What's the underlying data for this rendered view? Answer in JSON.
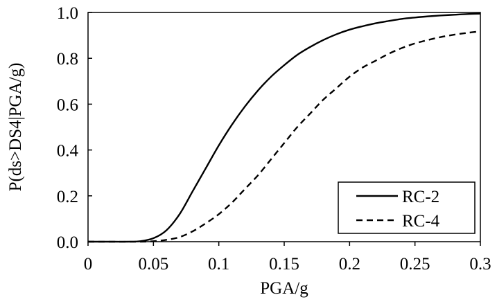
{
  "chart_data": {
    "type": "line",
    "xlabel": "PGA/g",
    "ylabel": "P(ds>DS4|PGA/g)",
    "xlim": [
      0,
      0.3
    ],
    "ylim": [
      0,
      1.0
    ],
    "x_ticks": [
      "0",
      "0.05",
      "0.1",
      "0.15",
      "0.2",
      "0.25",
      "0.3"
    ],
    "y_ticks": [
      "0.0",
      "0.2",
      "0.4",
      "0.6",
      "0.8",
      "1.0"
    ],
    "grid": false,
    "legend_position": "bottom-right",
    "series": [
      {
        "name": "RC-2",
        "line_style": "solid",
        "color": "#000000",
        "x": [
          0.0,
          0.02,
          0.03,
          0.04,
          0.05,
          0.06,
          0.07,
          0.08,
          0.09,
          0.1,
          0.11,
          0.12,
          0.13,
          0.14,
          0.15,
          0.16,
          0.17,
          0.18,
          0.19,
          0.2,
          0.21,
          0.22,
          0.23,
          0.24,
          0.25,
          0.26,
          0.27,
          0.28,
          0.29,
          0.3
        ],
        "y": [
          0.0,
          0.0,
          0.0,
          0.002,
          0.015,
          0.05,
          0.12,
          0.22,
          0.32,
          0.42,
          0.51,
          0.59,
          0.66,
          0.72,
          0.77,
          0.815,
          0.85,
          0.88,
          0.905,
          0.925,
          0.94,
          0.953,
          0.963,
          0.972,
          0.978,
          0.983,
          0.987,
          0.99,
          0.993,
          0.995
        ]
      },
      {
        "name": "RC-4",
        "line_style": "dashed",
        "color": "#000000",
        "x": [
          0.0,
          0.04,
          0.05,
          0.06,
          0.07,
          0.08,
          0.09,
          0.1,
          0.11,
          0.12,
          0.13,
          0.14,
          0.15,
          0.16,
          0.17,
          0.18,
          0.19,
          0.2,
          0.21,
          0.22,
          0.23,
          0.24,
          0.25,
          0.26,
          0.27,
          0.28,
          0.29,
          0.3
        ],
        "y": [
          0.0,
          0.0,
          0.002,
          0.008,
          0.02,
          0.045,
          0.08,
          0.12,
          0.17,
          0.23,
          0.29,
          0.36,
          0.43,
          0.5,
          0.56,
          0.62,
          0.67,
          0.72,
          0.76,
          0.79,
          0.82,
          0.845,
          0.865,
          0.88,
          0.893,
          0.903,
          0.911,
          0.918
        ]
      }
    ]
  }
}
